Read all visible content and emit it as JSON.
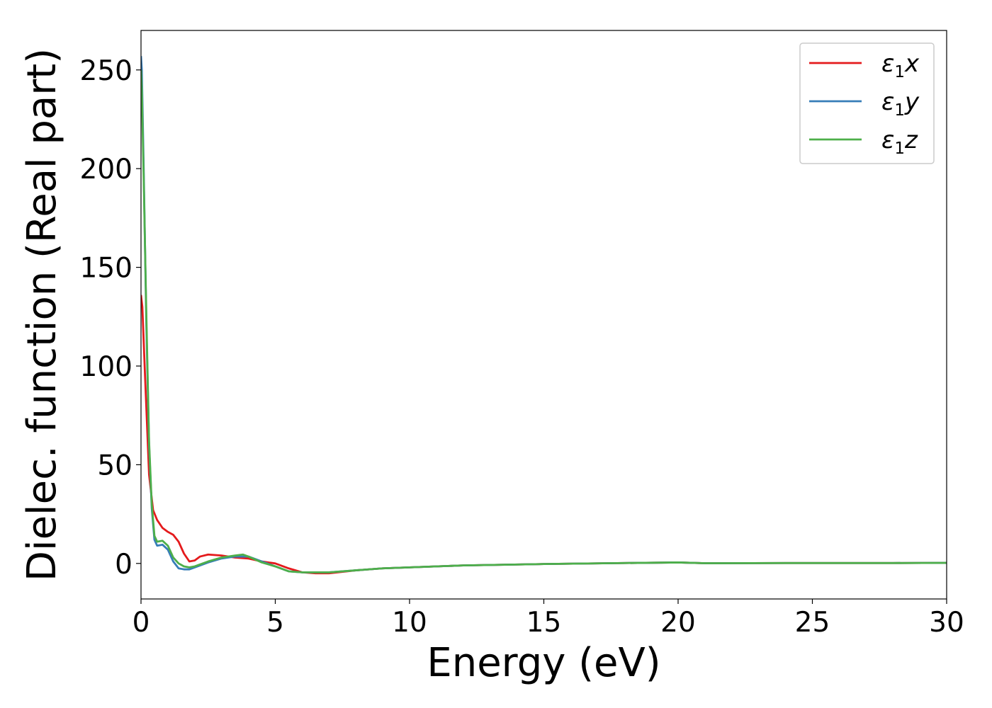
{
  "chart_data": {
    "type": "line",
    "title": "",
    "xlabel": "Energy (eV)",
    "ylabel": "Dielec. function (Real part)",
    "xlim": [
      0,
      30
    ],
    "ylim": [
      -18,
      270
    ],
    "xticks": [
      0,
      5,
      10,
      15,
      20,
      25,
      30
    ],
    "yticks": [
      0,
      50,
      100,
      150,
      200,
      250
    ],
    "grid": false,
    "legend_position": "top-right",
    "series": [
      {
        "name": "ε₁x",
        "legend": {
          "base": "ε",
          "sub": "1",
          "var": "x"
        },
        "color": "#e41a1c",
        "x": [
          0,
          0.05,
          0.15,
          0.3,
          0.45,
          0.6,
          0.8,
          1.0,
          1.2,
          1.4,
          1.6,
          1.8,
          2.0,
          2.2,
          2.5,
          3.0,
          3.5,
          4.0,
          4.5,
          5.0,
          5.5,
          6.0,
          6.5,
          7.0,
          8.0,
          9.0,
          10,
          12,
          15,
          18,
          20,
          21,
          24,
          26,
          28,
          30
        ],
        "y": [
          136,
          130,
          95,
          45,
          27,
          22,
          18,
          16,
          14.5,
          11,
          5,
          1,
          1.5,
          3.5,
          4.5,
          4,
          3,
          2.5,
          1,
          0,
          -2.5,
          -4.5,
          -5,
          -5,
          -3.5,
          -2.5,
          -2,
          -1,
          -0.3,
          0.2,
          0.5,
          0.1,
          0.2,
          0.2,
          0.2,
          0.3
        ]
      },
      {
        "name": "ε₁y",
        "legend": {
          "base": "ε",
          "sub": "1",
          "var": "y"
        },
        "color": "#377eb8",
        "x": [
          0,
          0.03,
          0.1,
          0.2,
          0.3,
          0.4,
          0.5,
          0.6,
          0.8,
          1.0,
          1.2,
          1.4,
          1.6,
          1.8,
          2.0,
          2.5,
          3.0,
          3.5,
          4.0,
          4.5,
          5.0,
          5.5,
          6.0,
          6.5,
          7.0,
          8.0,
          9.0,
          10,
          12,
          15,
          18,
          20,
          21,
          24,
          26,
          28,
          30
        ],
        "y": [
          257,
          250,
          200,
          120,
          60,
          28,
          12,
          9,
          9.5,
          7,
          1,
          -2.5,
          -3,
          -3,
          -2,
          0.5,
          2.5,
          3.5,
          3.5,
          1,
          -1.5,
          -4,
          -4.5,
          -4.5,
          -4.5,
          -3.5,
          -2.5,
          -2,
          -1,
          -0.3,
          0.2,
          0.5,
          0.1,
          0.2,
          0.2,
          0.2,
          0.3
        ]
      },
      {
        "name": "ε₁z",
        "legend": {
          "base": "ε",
          "sub": "1",
          "var": "z"
        },
        "color": "#4daf4a",
        "x": [
          0,
          0.03,
          0.1,
          0.2,
          0.3,
          0.4,
          0.5,
          0.6,
          0.8,
          1.0,
          1.2,
          1.4,
          1.6,
          1.8,
          2.0,
          2.5,
          3.0,
          3.5,
          3.8,
          4.0,
          4.5,
          5.0,
          5.5,
          6.0,
          6.5,
          7.0,
          8.0,
          9.0,
          10,
          12,
          15,
          18,
          20,
          21,
          24,
          26,
          28,
          30
        ],
        "y": [
          250,
          240,
          195,
          125,
          62,
          30,
          14,
          11,
          11.5,
          9,
          3,
          0,
          -1.5,
          -2,
          -1.5,
          1,
          3,
          4,
          4.5,
          3.5,
          0.5,
          -1.5,
          -4,
          -4.5,
          -4.5,
          -4.5,
          -3.5,
          -2.5,
          -2,
          -1,
          -0.3,
          0.2,
          0.5,
          0.1,
          0.2,
          0.2,
          0.2,
          0.3
        ]
      }
    ]
  }
}
